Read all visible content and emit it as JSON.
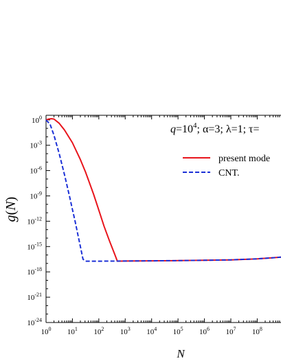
{
  "chart_data": {
    "type": "line",
    "xlabel": "N",
    "ylabel": "g(N)",
    "xscale": "log",
    "yscale": "log",
    "xlim_exp": [
      0,
      8.9
    ],
    "ylim_exp": [
      -24,
      0.55
    ],
    "x_ticks": [
      {
        "base": "10",
        "exp": "0"
      },
      {
        "base": "10",
        "exp": "1"
      },
      {
        "base": "10",
        "exp": "2"
      },
      {
        "base": "10",
        "exp": "3"
      },
      {
        "base": "10",
        "exp": "4"
      },
      {
        "base": "10",
        "exp": "5"
      },
      {
        "base": "10",
        "exp": "6"
      },
      {
        "base": "10",
        "exp": "7"
      },
      {
        "base": "10",
        "exp": "8"
      }
    ],
    "y_ticks": [
      {
        "base": "10",
        "exp": "0"
      },
      {
        "base": "10",
        "exp": "-3"
      },
      {
        "base": "10",
        "exp": "-6"
      },
      {
        "base": "10",
        "exp": "-9"
      },
      {
        "base": "10",
        "exp": "-12"
      },
      {
        "base": "10",
        "exp": "-15"
      },
      {
        "base": "10",
        "exp": "-18"
      },
      {
        "base": "10",
        "exp": "-21"
      },
      {
        "base": "10",
        "exp": "-24"
      }
    ],
    "annotation": {
      "q": "q",
      "q_eq": "=10",
      "q_exp": "4",
      "alpha": "; α=3; λ=1; τ="
    },
    "legend_position": "top-right",
    "series": [
      {
        "name": "present mode",
        "color": "#e8141b",
        "dash": "solid",
        "log10_x": [
          0,
          0.1,
          0.2,
          0.3,
          0.5,
          0.7,
          1.0,
          1.3,
          1.5,
          1.8,
          2.0,
          2.2,
          2.4,
          2.6,
          2.7,
          3.0,
          4.0,
          5.0,
          6.0,
          7.0,
          8.0,
          8.5,
          8.9
        ],
        "log10_y": [
          0,
          0.1,
          0.14,
          0.1,
          -0.4,
          -1.2,
          -2.7,
          -4.7,
          -6.2,
          -8.8,
          -10.7,
          -12.6,
          -14.3,
          -15.9,
          -16.73,
          -16.72,
          -16.69,
          -16.67,
          -16.63,
          -16.58,
          -16.46,
          -16.35,
          -16.25
        ]
      },
      {
        "name": "CNT.",
        "color": "#1a2fd6",
        "dash": "dashed",
        "log10_x": [
          0,
          0.15,
          0.3,
          0.5,
          0.7,
          0.9,
          1.0,
          1.1,
          1.2,
          1.3,
          1.4,
          1.5,
          2.0,
          3.0,
          4.0,
          5.0,
          6.0,
          7.0,
          8.0,
          8.5,
          8.9
        ],
        "log10_y": [
          0,
          -0.5,
          -1.8,
          -4.0,
          -6.5,
          -9.2,
          -10.6,
          -12.0,
          -13.5,
          -15.0,
          -16.5,
          -16.73,
          -16.73,
          -16.72,
          -16.69,
          -16.67,
          -16.63,
          -16.58,
          -16.46,
          -16.35,
          -16.25
        ]
      }
    ]
  }
}
